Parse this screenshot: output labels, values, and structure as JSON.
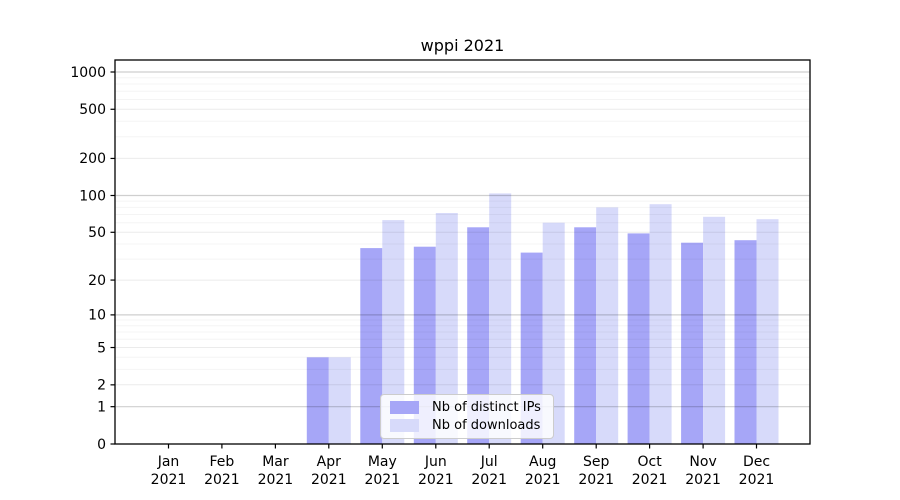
{
  "page": {
    "background": "#ffffff",
    "text_color": "#000000"
  },
  "chart_data": {
    "type": "bar",
    "title": "wppi 2021",
    "categories": [
      "Jan 2021",
      "Feb 2021",
      "Mar 2021",
      "Apr 2021",
      "May 2021",
      "Jun 2021",
      "Jul 2021",
      "Aug 2021",
      "Sep 2021",
      "Oct 2021",
      "Nov 2021",
      "Dec 2021"
    ],
    "series": [
      {
        "name": "Nb of distinct IPs",
        "color": "#a6a6f7",
        "values": [
          0,
          0,
          0,
          4,
          37,
          38,
          55,
          34,
          55,
          49,
          41,
          43
        ]
      },
      {
        "name": "Nb of downloads",
        "color": "#d7dafa",
        "values": [
          0,
          0,
          0,
          4,
          63,
          72,
          104,
          60,
          80,
          85,
          67,
          64
        ]
      }
    ],
    "xlabel": "",
    "ylabel": "",
    "y_scale": "symlog (y = ln(1+v))",
    "y_ticks": [
      0,
      1,
      2,
      5,
      10,
      20,
      50,
      100,
      200,
      500,
      1000
    ],
    "ylim": [
      0,
      1250
    ],
    "grid": "horizontal major and minor gridlines drawn over bars, no vertical grid",
    "legend_position": "inside lower-center",
    "axis_color": "#000000",
    "grid_major_color": "rgba(0,0,0,0.19)",
    "grid_mid_color": "rgba(0,0,0,0.08)",
    "grid_minor_color": "rgba(0,0,0,0.045)"
  }
}
